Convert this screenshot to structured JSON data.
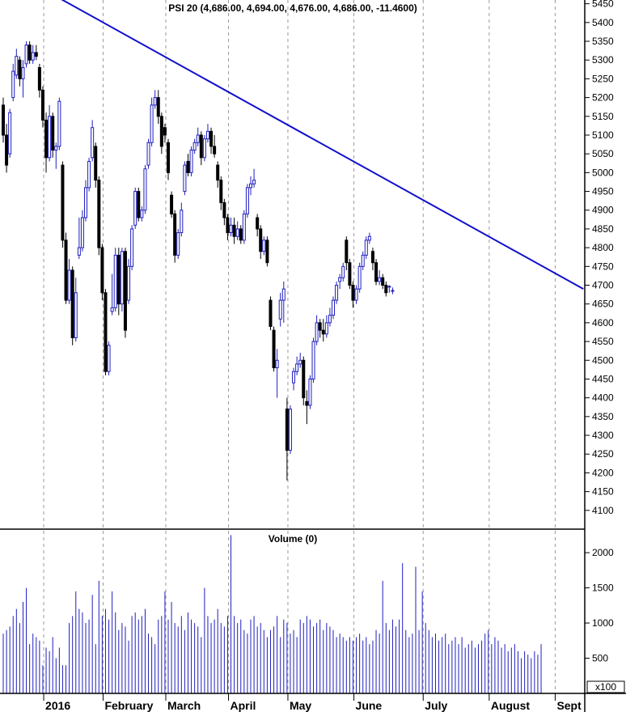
{
  "chart_data": [
    {
      "type": "candlestick",
      "title": "PSI 20 (4,686.00, 4,694.00, 4,676.00, 4,686.00, -11.4600)",
      "ylim": [
        4050,
        5460
      ],
      "yticks": [
        4100,
        4150,
        4200,
        4250,
        4300,
        4350,
        4400,
        4450,
        4500,
        4550,
        4600,
        4650,
        4700,
        4750,
        4800,
        4850,
        4900,
        4950,
        5000,
        5050,
        5100,
        5150,
        5200,
        5250,
        5300,
        5350,
        5400,
        5450
      ],
      "ytick_labels": [
        "4100",
        "4150",
        "4200",
        "4250",
        "4300",
        "4350",
        "4400",
        "4450",
        "4500",
        "4550",
        "4600",
        "4650",
        "4700",
        "4750",
        "4800",
        "4850",
        "4900",
        "4950",
        "5000",
        "5050",
        "5100",
        "5150",
        "5200",
        "5250",
        "5300",
        "5350",
        "5400",
        "5450"
      ],
      "candles": [
        {
          "o": 5180,
          "h": 5200,
          "l": 5080,
          "c": 5100
        },
        {
          "o": 5100,
          "h": 5130,
          "l": 5000,
          "c": 5020
        },
        {
          "o": 5050,
          "h": 5170,
          "l": 5040,
          "c": 5160
        },
        {
          "o": 5200,
          "h": 5290,
          "l": 5190,
          "c": 5270
        },
        {
          "o": 5260,
          "h": 5330,
          "l": 5250,
          "c": 5310
        },
        {
          "o": 5300,
          "h": 5310,
          "l": 5230,
          "c": 5250
        },
        {
          "o": 5250,
          "h": 5300,
          "l": 5200,
          "c": 5280
        },
        {
          "o": 5290,
          "h": 5350,
          "l": 5280,
          "c": 5340
        },
        {
          "o": 5340,
          "h": 5350,
          "l": 5290,
          "c": 5300
        },
        {
          "o": 5300,
          "h": 5340,
          "l": 5290,
          "c": 5320
        },
        {
          "o": 5320,
          "h": 5340,
          "l": 5300,
          "c": 5310
        },
        {
          "o": 5280,
          "h": 5290,
          "l": 5200,
          "c": 5220
        },
        {
          "o": 5220,
          "h": 5230,
          "l": 5120,
          "c": 5140
        },
        {
          "o": 5140,
          "h": 5160,
          "l": 5000,
          "c": 5040
        },
        {
          "o": 5040,
          "h": 5180,
          "l": 5030,
          "c": 5150
        },
        {
          "o": 5150,
          "h": 5160,
          "l": 5040,
          "c": 5060
        },
        {
          "o": 5060,
          "h": 5080,
          "l": 5010,
          "c": 5070
        },
        {
          "o": 5070,
          "h": 5200,
          "l": 5060,
          "c": 5190
        },
        {
          "o": 5020,
          "h": 5030,
          "l": 4800,
          "c": 4820
        },
        {
          "o": 4820,
          "h": 4840,
          "l": 4650,
          "c": 4660
        },
        {
          "o": 4660,
          "h": 4770,
          "l": 4650,
          "c": 4740
        },
        {
          "o": 4740,
          "h": 4750,
          "l": 4540,
          "c": 4560
        },
        {
          "o": 4560,
          "h": 4720,
          "l": 4550,
          "c": 4680
        },
        {
          "o": 4780,
          "h": 4880,
          "l": 4770,
          "c": 4800
        },
        {
          "o": 4800,
          "h": 4900,
          "l": 4790,
          "c": 4880
        },
        {
          "o": 4880,
          "h": 4980,
          "l": 4870,
          "c": 4960
        },
        {
          "o": 4960,
          "h": 5040,
          "l": 4950,
          "c": 5030
        },
        {
          "o": 5040,
          "h": 5140,
          "l": 5030,
          "c": 5120
        },
        {
          "o": 5070,
          "h": 5080,
          "l": 4960,
          "c": 4980
        },
        {
          "o": 4980,
          "h": 4990,
          "l": 4780,
          "c": 4800
        },
        {
          "o": 4800,
          "h": 4810,
          "l": 4660,
          "c": 4680
        },
        {
          "o": 4680,
          "h": 4690,
          "l": 4460,
          "c": 4470
        },
        {
          "o": 4470,
          "h": 4550,
          "l": 4460,
          "c": 4540
        },
        {
          "o": 4630,
          "h": 4730,
          "l": 4620,
          "c": 4640
        },
        {
          "o": 4640,
          "h": 4800,
          "l": 4630,
          "c": 4780
        },
        {
          "o": 4780,
          "h": 4800,
          "l": 4620,
          "c": 4650
        },
        {
          "o": 4650,
          "h": 4800,
          "l": 4630,
          "c": 4790
        },
        {
          "o": 4790,
          "h": 4800,
          "l": 4560,
          "c": 4580
        },
        {
          "o": 4660,
          "h": 4770,
          "l": 4650,
          "c": 4750
        },
        {
          "o": 4750,
          "h": 4860,
          "l": 4740,
          "c": 4850
        },
        {
          "o": 4860,
          "h": 4960,
          "l": 4850,
          "c": 4950
        },
        {
          "o": 4950,
          "h": 4960,
          "l": 4870,
          "c": 4880
        },
        {
          "o": 4880,
          "h": 4910,
          "l": 4870,
          "c": 4900
        },
        {
          "o": 4900,
          "h": 5020,
          "l": 4890,
          "c": 5010
        },
        {
          "o": 5020,
          "h": 5090,
          "l": 5010,
          "c": 5080
        },
        {
          "o": 5080,
          "h": 5200,
          "l": 5070,
          "c": 5180
        },
        {
          "o": 5180,
          "h": 5220,
          "l": 5170,
          "c": 5200
        },
        {
          "o": 5200,
          "h": 5220,
          "l": 5130,
          "c": 5150
        },
        {
          "o": 5150,
          "h": 5160,
          "l": 5050,
          "c": 5070
        },
        {
          "o": 5120,
          "h": 5130,
          "l": 5080,
          "c": 5100
        },
        {
          "o": 5080,
          "h": 5090,
          "l": 4980,
          "c": 5000
        },
        {
          "o": 4940,
          "h": 4950,
          "l": 4880,
          "c": 4890
        },
        {
          "o": 4890,
          "h": 4900,
          "l": 4760,
          "c": 4780
        },
        {
          "o": 4780,
          "h": 4850,
          "l": 4770,
          "c": 4840
        },
        {
          "o": 4840,
          "h": 4920,
          "l": 4830,
          "c": 4900
        },
        {
          "o": 4950,
          "h": 5030,
          "l": 4940,
          "c": 5020
        },
        {
          "o": 5030,
          "h": 5050,
          "l": 4990,
          "c": 5000
        },
        {
          "o": 5000,
          "h": 5070,
          "l": 4990,
          "c": 5060
        },
        {
          "o": 5060,
          "h": 5090,
          "l": 5050,
          "c": 5080
        },
        {
          "o": 5080,
          "h": 5120,
          "l": 5070,
          "c": 5100
        },
        {
          "o": 5100,
          "h": 5110,
          "l": 5020,
          "c": 5040
        },
        {
          "o": 5040,
          "h": 5100,
          "l": 5030,
          "c": 5090
        },
        {
          "o": 5090,
          "h": 5130,
          "l": 5080,
          "c": 5110
        },
        {
          "o": 5110,
          "h": 5120,
          "l": 5050,
          "c": 5070
        },
        {
          "o": 5070,
          "h": 5100,
          "l": 5040,
          "c": 5050
        },
        {
          "o": 5020,
          "h": 5030,
          "l": 4960,
          "c": 4980
        },
        {
          "o": 4980,
          "h": 4990,
          "l": 4900,
          "c": 4920
        },
        {
          "o": 4920,
          "h": 4930,
          "l": 4860,
          "c": 4880
        },
        {
          "o": 4880,
          "h": 4890,
          "l": 4820,
          "c": 4840
        },
        {
          "o": 4840,
          "h": 4880,
          "l": 4830,
          "c": 4860
        },
        {
          "o": 4860,
          "h": 4880,
          "l": 4810,
          "c": 4830
        },
        {
          "o": 4830,
          "h": 4870,
          "l": 4820,
          "c": 4850
        },
        {
          "o": 4850,
          "h": 4860,
          "l": 4810,
          "c": 4820
        },
        {
          "o": 4820,
          "h": 4900,
          "l": 4810,
          "c": 4890
        },
        {
          "o": 4890,
          "h": 4970,
          "l": 4880,
          "c": 4960
        },
        {
          "o": 4960,
          "h": 4990,
          "l": 4940,
          "c": 4970
        },
        {
          "o": 4970,
          "h": 5010,
          "l": 4960,
          "c": 4980
        },
        {
          "o": 4880,
          "h": 4890,
          "l": 4830,
          "c": 4850
        },
        {
          "o": 4850,
          "h": 4860,
          "l": 4770,
          "c": 4790
        },
        {
          "o": 4790,
          "h": 4830,
          "l": 4780,
          "c": 4820
        },
        {
          "o": 4820,
          "h": 4830,
          "l": 4750,
          "c": 4760
        },
        {
          "o": 4660,
          "h": 4670,
          "l": 4580,
          "c": 4590
        },
        {
          "o": 4580,
          "h": 4590,
          "l": 4470,
          "c": 4480
        },
        {
          "o": 4480,
          "h": 4530,
          "l": 4400,
          "c": 4500
        },
        {
          "o": 4610,
          "h": 4680,
          "l": 4590,
          "c": 4660
        },
        {
          "o": 4660,
          "h": 4710,
          "l": 4600,
          "c": 4690
        },
        {
          "o": 4370,
          "h": 4400,
          "l": 4180,
          "c": 4260
        },
        {
          "o": 4260,
          "h": 4380,
          "l": 4250,
          "c": 4370
        },
        {
          "o": 4440,
          "h": 4480,
          "l": 4420,
          "c": 4470
        },
        {
          "o": 4470,
          "h": 4510,
          "l": 4460,
          "c": 4490
        },
        {
          "o": 4490,
          "h": 4520,
          "l": 4480,
          "c": 4500
        },
        {
          "o": 4500,
          "h": 4510,
          "l": 4380,
          "c": 4400
        },
        {
          "o": 4390,
          "h": 4420,
          "l": 4330,
          "c": 4380
        },
        {
          "o": 4380,
          "h": 4460,
          "l": 4370,
          "c": 4450
        },
        {
          "o": 4450,
          "h": 4560,
          "l": 4440,
          "c": 4550
        },
        {
          "o": 4550,
          "h": 4620,
          "l": 4540,
          "c": 4600
        },
        {
          "o": 4600,
          "h": 4610,
          "l": 4560,
          "c": 4580
        },
        {
          "o": 4580,
          "h": 4610,
          "l": 4550,
          "c": 4570
        },
        {
          "o": 4570,
          "h": 4620,
          "l": 4560,
          "c": 4600
        },
        {
          "o": 4600,
          "h": 4640,
          "l": 4590,
          "c": 4620
        },
        {
          "o": 4620,
          "h": 4670,
          "l": 4610,
          "c": 4660
        },
        {
          "o": 4660,
          "h": 4710,
          "l": 4650,
          "c": 4700
        },
        {
          "o": 4710,
          "h": 4730,
          "l": 4690,
          "c": 4720
        },
        {
          "o": 4720,
          "h": 4760,
          "l": 4710,
          "c": 4750
        },
        {
          "o": 4820,
          "h": 4830,
          "l": 4740,
          "c": 4760
        },
        {
          "o": 4760,
          "h": 4770,
          "l": 4690,
          "c": 4700
        },
        {
          "o": 4700,
          "h": 4710,
          "l": 4640,
          "c": 4660
        },
        {
          "o": 4660,
          "h": 4700,
          "l": 4650,
          "c": 4690
        },
        {
          "o": 4690,
          "h": 4760,
          "l": 4680,
          "c": 4750
        },
        {
          "o": 4750,
          "h": 4790,
          "l": 4740,
          "c": 4780
        },
        {
          "o": 4780,
          "h": 4830,
          "l": 4770,
          "c": 4820
        },
        {
          "o": 4820,
          "h": 4840,
          "l": 4810,
          "c": 4830
        },
        {
          "o": 4790,
          "h": 4800,
          "l": 4740,
          "c": 4760
        },
        {
          "o": 4760,
          "h": 4770,
          "l": 4700,
          "c": 4710
        },
        {
          "o": 4710,
          "h": 4740,
          "l": 4700,
          "c": 4720
        },
        {
          "o": 4720,
          "h": 4730,
          "l": 4690,
          "c": 4700
        },
        {
          "o": 4700,
          "h": 4710,
          "l": 4670,
          "c": 4680
        },
        {
          "o": 4697,
          "h": 4700,
          "l": 4680,
          "c": 4697
        },
        {
          "o": 4686,
          "h": 4694,
          "l": 4676,
          "c": 4686
        }
      ],
      "trendline": [
        [
          0,
          5500
        ],
        [
          166,
          4690
        ]
      ],
      "xlabels": [
        {
          "label": "2016",
          "index": 13
        },
        {
          "label": "February",
          "index": 31
        },
        {
          "label": "March",
          "index": 50
        },
        {
          "label": "April",
          "index": 69
        },
        {
          "label": "May",
          "index": 87
        },
        {
          "label": "June",
          "index": 107
        },
        {
          "label": "July",
          "index": 128
        },
        {
          "label": "August",
          "index": 148
        },
        {
          "label": "Sept",
          "index": 168
        }
      ]
    },
    {
      "type": "bar",
      "title": "Volume (0)",
      "ylim": [
        0,
        2300
      ],
      "yticks": [
        500,
        1000,
        1500,
        2000
      ],
      "ytick_labels": [
        "500",
        "1000",
        "1500",
        "2000"
      ],
      "unit": "x100",
      "values": [
        850,
        900,
        950,
        1100,
        1200,
        1000,
        1300,
        1500,
        700,
        850,
        800,
        750,
        400,
        650,
        600,
        800,
        500,
        650,
        400,
        400,
        1000,
        1100,
        1450,
        1200,
        1150,
        1000,
        1050,
        1400,
        700,
        1600,
        1100,
        1200,
        1050,
        1450,
        1150,
        900,
        1000,
        950,
        750,
        1100,
        1150,
        1050,
        1100,
        1200,
        850,
        800,
        700,
        1050,
        1100,
        1450,
        1050,
        1300,
        1000,
        950,
        1100,
        900,
        1150,
        1050,
        1000,
        950,
        800,
        1500,
        1100,
        1000,
        1050,
        1200,
        1000,
        950,
        1100,
        2250,
        1100,
        1000,
        1050,
        900,
        850,
        1050,
        1100,
        950,
        1000,
        900,
        800,
        900,
        950,
        1100,
        800,
        1050,
        1000,
        850,
        900,
        800,
        1050,
        1000,
        1100,
        1050,
        950,
        1000,
        1050,
        900,
        1000,
        950,
        900,
        800,
        850,
        800,
        750,
        800,
        750,
        800,
        850,
        750,
        800,
        700,
        750,
        900,
        850,
        1600,
        1000,
        900,
        1050,
        950,
        1050,
        1850,
        900,
        800,
        850,
        1800,
        900,
        1450,
        1000,
        900,
        800,
        850,
        750,
        800,
        850,
        700,
        750,
        800,
        700,
        800,
        650,
        700,
        750,
        650,
        700,
        750,
        850,
        900,
        700,
        800,
        750,
        650,
        700,
        600,
        650,
        700,
        600,
        500,
        600,
        550,
        500,
        600,
        550,
        700
      ]
    }
  ]
}
